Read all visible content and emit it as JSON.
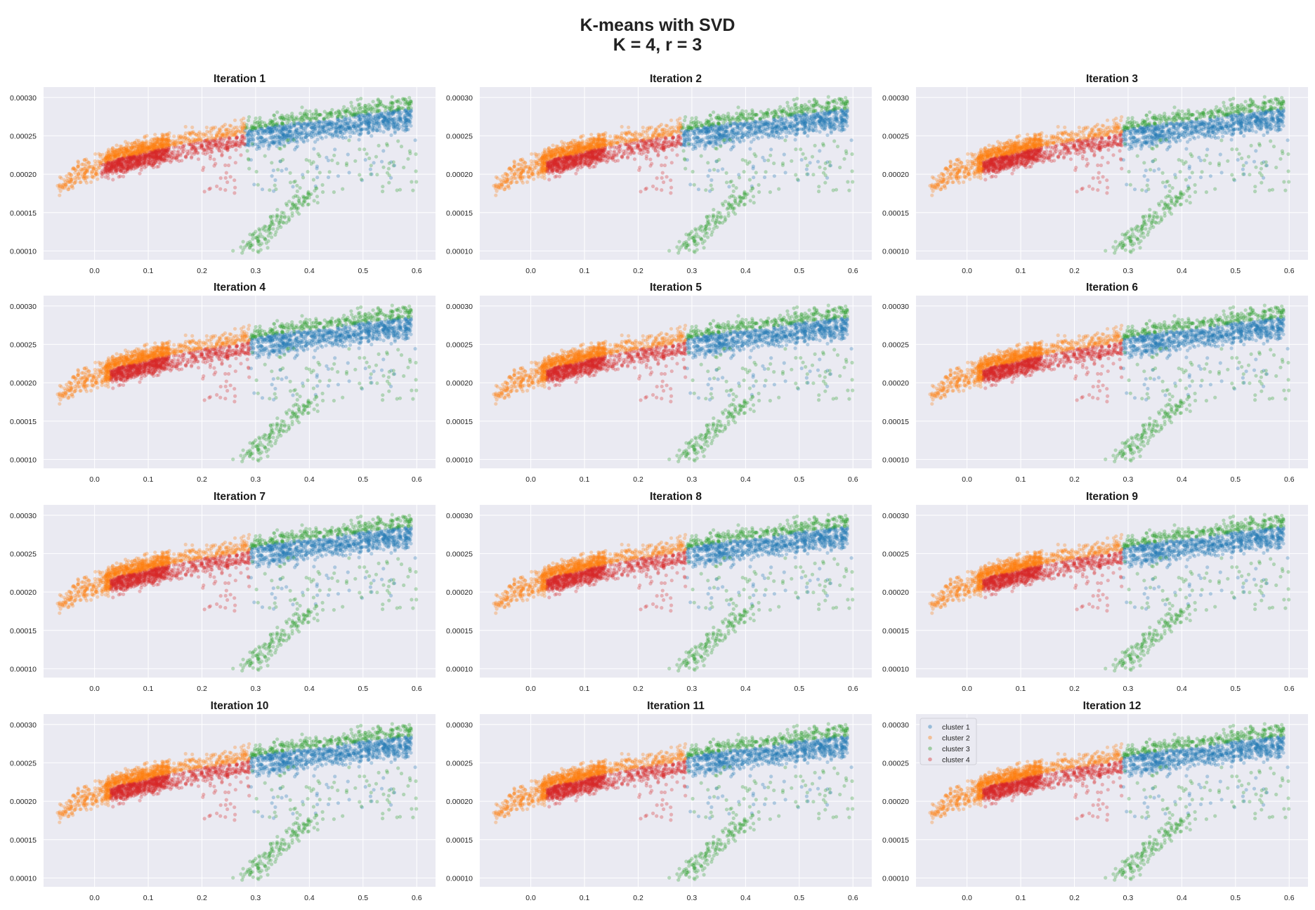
{
  "figure": {
    "title_line1": "K-means with SVD",
    "title_line2": "K = 4, r = 3"
  },
  "chart_data": {
    "type": "scatter",
    "grid": true,
    "background": "#eaeaf2",
    "layout": "4x3 subplot grid",
    "subplot_titles": [
      "Iteration 1",
      "Iteration 2",
      "Iteration 3",
      "Iteration 4",
      "Iteration 5",
      "Iteration 6",
      "Iteration 7",
      "Iteration 8",
      "Iteration 9",
      "Iteration 10",
      "Iteration 11",
      "Iteration 12"
    ],
    "xlim": [
      -0.095,
      0.635
    ],
    "ylim": [
      8.85e-05,
      0.0003135
    ],
    "xticks": [
      0.0,
      0.1,
      0.2,
      0.3,
      0.4,
      0.5,
      0.6
    ],
    "xtick_labels": [
      "0.0",
      "0.1",
      "0.2",
      "0.3",
      "0.4",
      "0.5",
      "0.6"
    ],
    "yticks": [
      0.0001,
      0.00015,
      0.0002,
      0.00025,
      0.0003
    ],
    "ytick_labels": [
      "0.00010",
      "0.00015",
      "0.00020",
      "0.00025",
      "0.00030"
    ],
    "series": [
      {
        "name": "cluster 1",
        "color": "#1f77b4"
      },
      {
        "name": "cluster 2",
        "color": "#ff7f0e"
      },
      {
        "name": "cluster 3",
        "color": "#2ca02c"
      },
      {
        "name": "cluster 4",
        "color": "#d62728"
      }
    ],
    "legend_subplot": 12,
    "legend_location": "upper left",
    "point_alpha": 0.3,
    "iterations": [
      {
        "cluster_regions": {
          "orange_xmax": 0.28,
          "red_xrange": [
            0.03,
            0.3
          ],
          "red_dense_xrange": [
            0.03,
            0.12
          ],
          "blue_xrange": [
            0.3,
            0.6
          ],
          "green_xrange": [
            0.3,
            0.6
          ]
        }
      },
      {
        "cluster_regions": {
          "orange_xmax": 0.28,
          "red_xrange": [
            0.05,
            0.3
          ],
          "red_dense_xrange": [
            0.05,
            0.15
          ],
          "blue_xrange": [
            0.3,
            0.6
          ],
          "green_xrange": [
            0.3,
            0.6
          ]
        }
      },
      {
        "cluster_regions": {
          "orange_xmax": 0.29,
          "red_xrange": [
            0.05,
            0.3
          ],
          "red_dense_xrange": [
            0.05,
            0.15
          ],
          "blue_xrange": [
            0.3,
            0.6
          ],
          "green_xrange": [
            0.3,
            0.6
          ]
        }
      },
      {
        "cluster_regions": {
          "orange_xmax": 0.29,
          "red_xrange": [
            0.05,
            0.3
          ],
          "red_dense_xrange": [
            0.05,
            0.15
          ],
          "blue_xrange": [
            0.3,
            0.6
          ],
          "green_xrange": [
            0.3,
            0.6
          ]
        }
      },
      {
        "cluster_regions": {
          "orange_xmax": 0.29,
          "red_xrange": [
            0.05,
            0.3
          ],
          "red_dense_xrange": [
            0.05,
            0.15
          ],
          "blue_xrange": [
            0.3,
            0.6
          ],
          "green_xrange": [
            0.3,
            0.6
          ]
        }
      },
      {
        "cluster_regions": {
          "orange_xmax": 0.29,
          "red_xrange": [
            0.05,
            0.3
          ],
          "red_dense_xrange": [
            0.05,
            0.15
          ],
          "blue_xrange": [
            0.3,
            0.6
          ],
          "green_xrange": [
            0.3,
            0.6
          ]
        }
      },
      {
        "cluster_regions": {
          "orange_xmax": 0.29,
          "red_xrange": [
            0.05,
            0.3
          ],
          "red_dense_xrange": [
            0.05,
            0.15
          ],
          "blue_xrange": [
            0.3,
            0.6
          ],
          "green_xrange": [
            0.3,
            0.6
          ]
        }
      },
      {
        "cluster_regions": {
          "orange_xmax": 0.29,
          "red_xrange": [
            0.05,
            0.3
          ],
          "red_dense_xrange": [
            0.05,
            0.15
          ],
          "blue_xrange": [
            0.3,
            0.6
          ],
          "green_xrange": [
            0.3,
            0.6
          ]
        }
      },
      {
        "cluster_regions": {
          "orange_xmax": 0.29,
          "red_xrange": [
            0.05,
            0.3
          ],
          "red_dense_xrange": [
            0.05,
            0.15
          ],
          "blue_xrange": [
            0.3,
            0.6
          ],
          "green_xrange": [
            0.3,
            0.6
          ]
        }
      },
      {
        "cluster_regions": {
          "orange_xmax": 0.29,
          "red_xrange": [
            0.05,
            0.3
          ],
          "red_dense_xrange": [
            0.05,
            0.15
          ],
          "blue_xrange": [
            0.3,
            0.6
          ],
          "green_xrange": [
            0.3,
            0.6
          ]
        }
      },
      {
        "cluster_regions": {
          "orange_xmax": 0.29,
          "red_xrange": [
            0.05,
            0.3
          ],
          "red_dense_xrange": [
            0.05,
            0.15
          ],
          "blue_xrange": [
            0.3,
            0.6
          ],
          "green_xrange": [
            0.3,
            0.6
          ]
        }
      },
      {
        "cluster_regions": {
          "orange_xmax": 0.29,
          "red_xrange": [
            0.05,
            0.3
          ],
          "red_dense_xrange": [
            0.05,
            0.15
          ],
          "blue_xrange": [
            0.3,
            0.6
          ],
          "green_xrange": [
            0.3,
            0.6
          ]
        }
      }
    ]
  }
}
